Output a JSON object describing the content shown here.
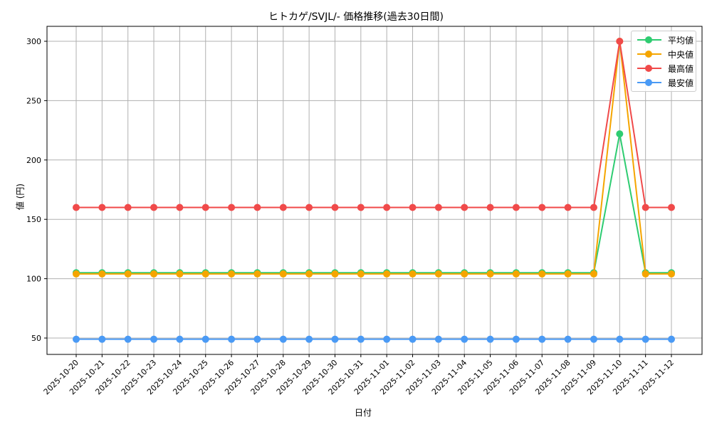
{
  "chart_data": {
    "type": "line",
    "title": "ヒトカゲ/SVJL/- 価格推移(過去30日間)",
    "xlabel": "日付",
    "ylabel": "値 (円)",
    "ylim": [
      35,
      313
    ],
    "yticks": [
      50,
      100,
      150,
      200,
      250,
      300
    ],
    "grid": true,
    "legend_position": "upper right",
    "x": [
      "2025-10-20",
      "2025-10-21",
      "2025-10-22",
      "2025-10-23",
      "2025-10-24",
      "2025-10-25",
      "2025-10-26",
      "2025-10-27",
      "2025-10-28",
      "2025-10-29",
      "2025-10-30",
      "2025-10-31",
      "2025-11-01",
      "2025-11-02",
      "2025-11-03",
      "2025-11-04",
      "2025-11-05",
      "2025-11-06",
      "2025-11-07",
      "2025-11-08",
      "2025-11-09",
      "2025-11-10",
      "2025-11-11",
      "2025-11-12"
    ],
    "series": [
      {
        "name": "平均値",
        "color": "#2ecc71",
        "values": [
          105,
          105,
          105,
          105,
          105,
          105,
          105,
          105,
          105,
          105,
          105,
          105,
          105,
          105,
          105,
          105,
          105,
          105,
          105,
          105,
          105,
          222,
          105,
          105
        ]
      },
      {
        "name": "中央値",
        "color": "#f5a500",
        "values": [
          104,
          104,
          104,
          104,
          104,
          104,
          104,
          104,
          104,
          104,
          104,
          104,
          104,
          104,
          104,
          104,
          104,
          104,
          104,
          104,
          104,
          300,
          104,
          104
        ]
      },
      {
        "name": "最高値",
        "color": "#f04a4a",
        "values": [
          160,
          160,
          160,
          160,
          160,
          160,
          160,
          160,
          160,
          160,
          160,
          160,
          160,
          160,
          160,
          160,
          160,
          160,
          160,
          160,
          160,
          300,
          160,
          160
        ]
      },
      {
        "name": "最安値",
        "color": "#4a9af5",
        "values": [
          49,
          49,
          49,
          49,
          49,
          49,
          49,
          49,
          49,
          49,
          49,
          49,
          49,
          49,
          49,
          49,
          49,
          49,
          49,
          49,
          49,
          49,
          49,
          49
        ]
      }
    ]
  }
}
